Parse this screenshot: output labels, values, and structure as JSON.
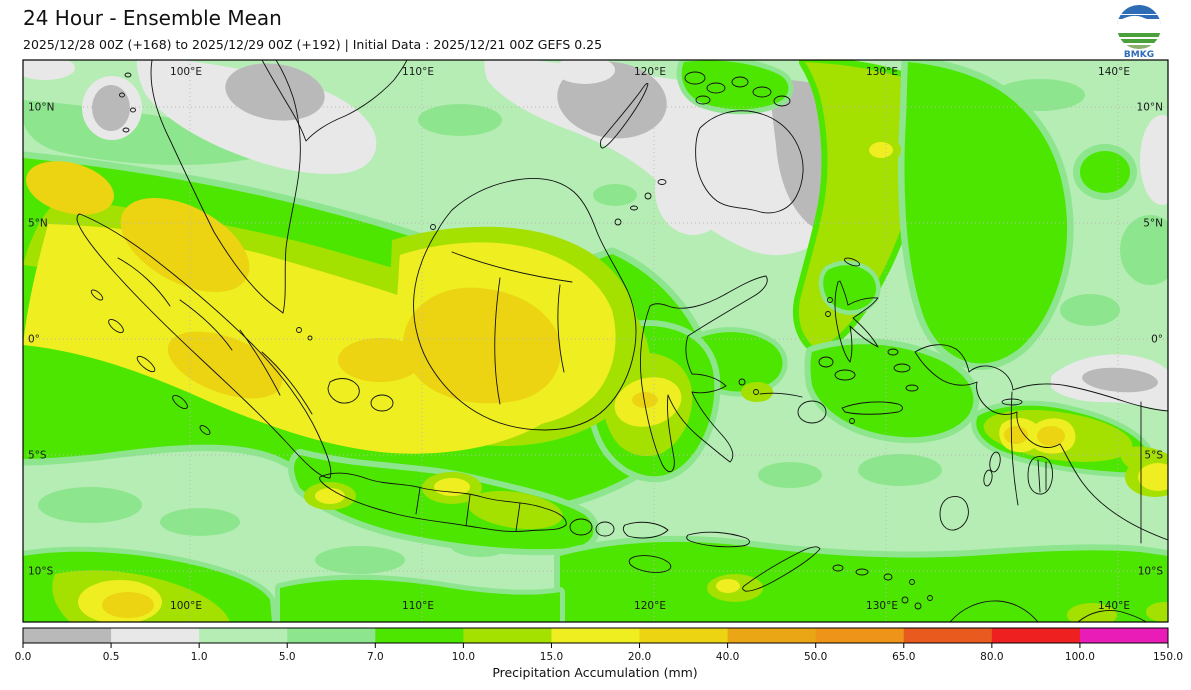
{
  "header": {
    "title": "24 Hour - Ensemble Mean",
    "subtitle": "2025/12/28 00Z (+168) to 2025/12/29 00Z (+192) | Initial Data : 2025/12/21 00Z GEFS 0.25",
    "logo_text": "BMKG"
  },
  "map": {
    "lon_labels": [
      "100°E",
      "110°E",
      "120°E",
      "130°E",
      "140°E"
    ],
    "lat_labels": [
      "10°N",
      "5°N",
      "0°",
      "5°S",
      "10°S"
    ]
  },
  "colorbar": {
    "label": "Precipitation Accumulation (mm)",
    "tick_labels": [
      "0.0",
      "0.5",
      "1.0",
      "5.0",
      "7.0",
      "10.0",
      "15.0",
      "20.0",
      "40.0",
      "50.0",
      "65.0",
      "80.0",
      "100.0",
      "150.0"
    ],
    "segment_colors": [
      "#b9b9b9",
      "#e8e8e8",
      "#b5edb5",
      "#8de68d",
      "#4ce600",
      "#a4e000",
      "#eeee20",
      "#ecd412",
      "#eaa614",
      "#ee9418",
      "#e85a1e",
      "#ee2020",
      "#ea1cb8"
    ]
  },
  "chart_data": {
    "type": "heatmap",
    "title": "24 Hour - Ensemble Mean",
    "variable": "Precipitation Accumulation (mm)",
    "scale_breaks": [
      0.0,
      0.5,
      1.0,
      5.0,
      7.0,
      10.0,
      15.0,
      20.0,
      40.0,
      50.0,
      65.0,
      80.0,
      100.0,
      150.0
    ],
    "scale_colors": [
      "#b9b9b9",
      "#e8e8e8",
      "#b5edb5",
      "#8de68d",
      "#4ce600",
      "#a4e000",
      "#eeee20",
      "#ecd412",
      "#eaa614",
      "#ee9418",
      "#e85a1e",
      "#ee2020",
      "#ea1cb8"
    ],
    "x_tick_labels": [
      "100°E",
      "110°E",
      "120°E",
      "130°E",
      "140°E"
    ],
    "y_tick_labels": [
      "10°N",
      "5°N",
      "0°",
      "5°S",
      "10°S"
    ]
  }
}
